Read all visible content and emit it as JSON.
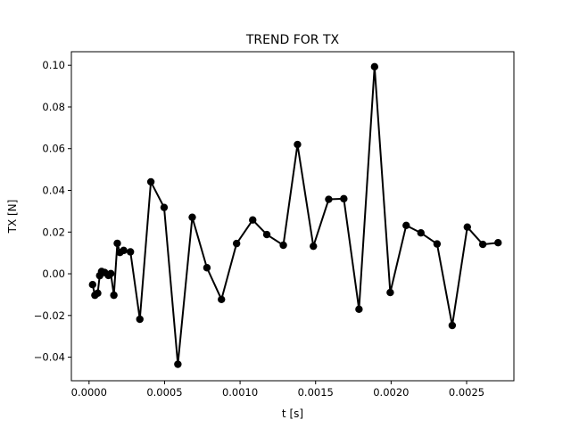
{
  "chart_data": {
    "type": "line",
    "title": "TREND FOR TX",
    "xlabel": "t [s]",
    "ylabel": "TX [N]",
    "xlim": [
      -0.000117,
      0.002813
    ],
    "ylim": [
      -0.0513,
      0.1065
    ],
    "xticks": [
      0.0,
      0.0005,
      0.001,
      0.0015,
      0.002,
      0.0025
    ],
    "xtick_labels": [
      "0.0000",
      "0.0005",
      "0.0010",
      "0.0015",
      "0.0020",
      "0.0025"
    ],
    "yticks": [
      -0.04,
      -0.02,
      0.0,
      0.02,
      0.04,
      0.06,
      0.08,
      0.1
    ],
    "ytick_labels": [
      "−0.04",
      "−0.02",
      "0.00",
      "0.02",
      "0.04",
      "0.06",
      "0.08",
      "0.10"
    ],
    "grid": false,
    "legend": false,
    "color": "#000000",
    "marker": "circle",
    "series": [
      {
        "x": [
          2.35e-05,
          3.88e-05,
          5.74e-05,
          7.06e-05,
          8.31e-05,
          0.0001034,
          0.0001284,
          0.0001444,
          0.0001644,
          0.0001872,
          0.0002043,
          0.0002293,
          0.000274,
          0.0003363,
          0.0004094,
          0.0004971,
          0.0005881,
          0.0006834,
          0.0007804,
          0.0008768,
          0.0009769,
          0.0010837,
          0.001177,
          0.0012864,
          0.0013802,
          0.0014853,
          0.0015868,
          0.0016868,
          0.0017874,
          0.0018904,
          0.0019943,
          0.0020999,
          0.0021973,
          0.0023043,
          0.0024047,
          0.0025046,
          0.0026071,
          0.0027082
        ],
        "y": [
          -0.0052,
          -0.0103,
          -0.0093,
          -0.0009,
          0.0011,
          0.0006,
          -0.0008,
          0.0001,
          -0.0103,
          0.0146,
          0.0102,
          0.0112,
          0.0105,
          -0.0218,
          0.0441,
          0.0318,
          -0.0434,
          0.0271,
          0.0029,
          -0.0123,
          0.0145,
          0.0258,
          0.0188,
          0.0137,
          0.062,
          0.0132,
          0.0357,
          0.036,
          -0.017,
          0.0993,
          -0.009,
          0.0232,
          0.0196,
          0.0143,
          -0.0248,
          0.0224,
          0.0141,
          0.0149
        ]
      }
    ]
  }
}
